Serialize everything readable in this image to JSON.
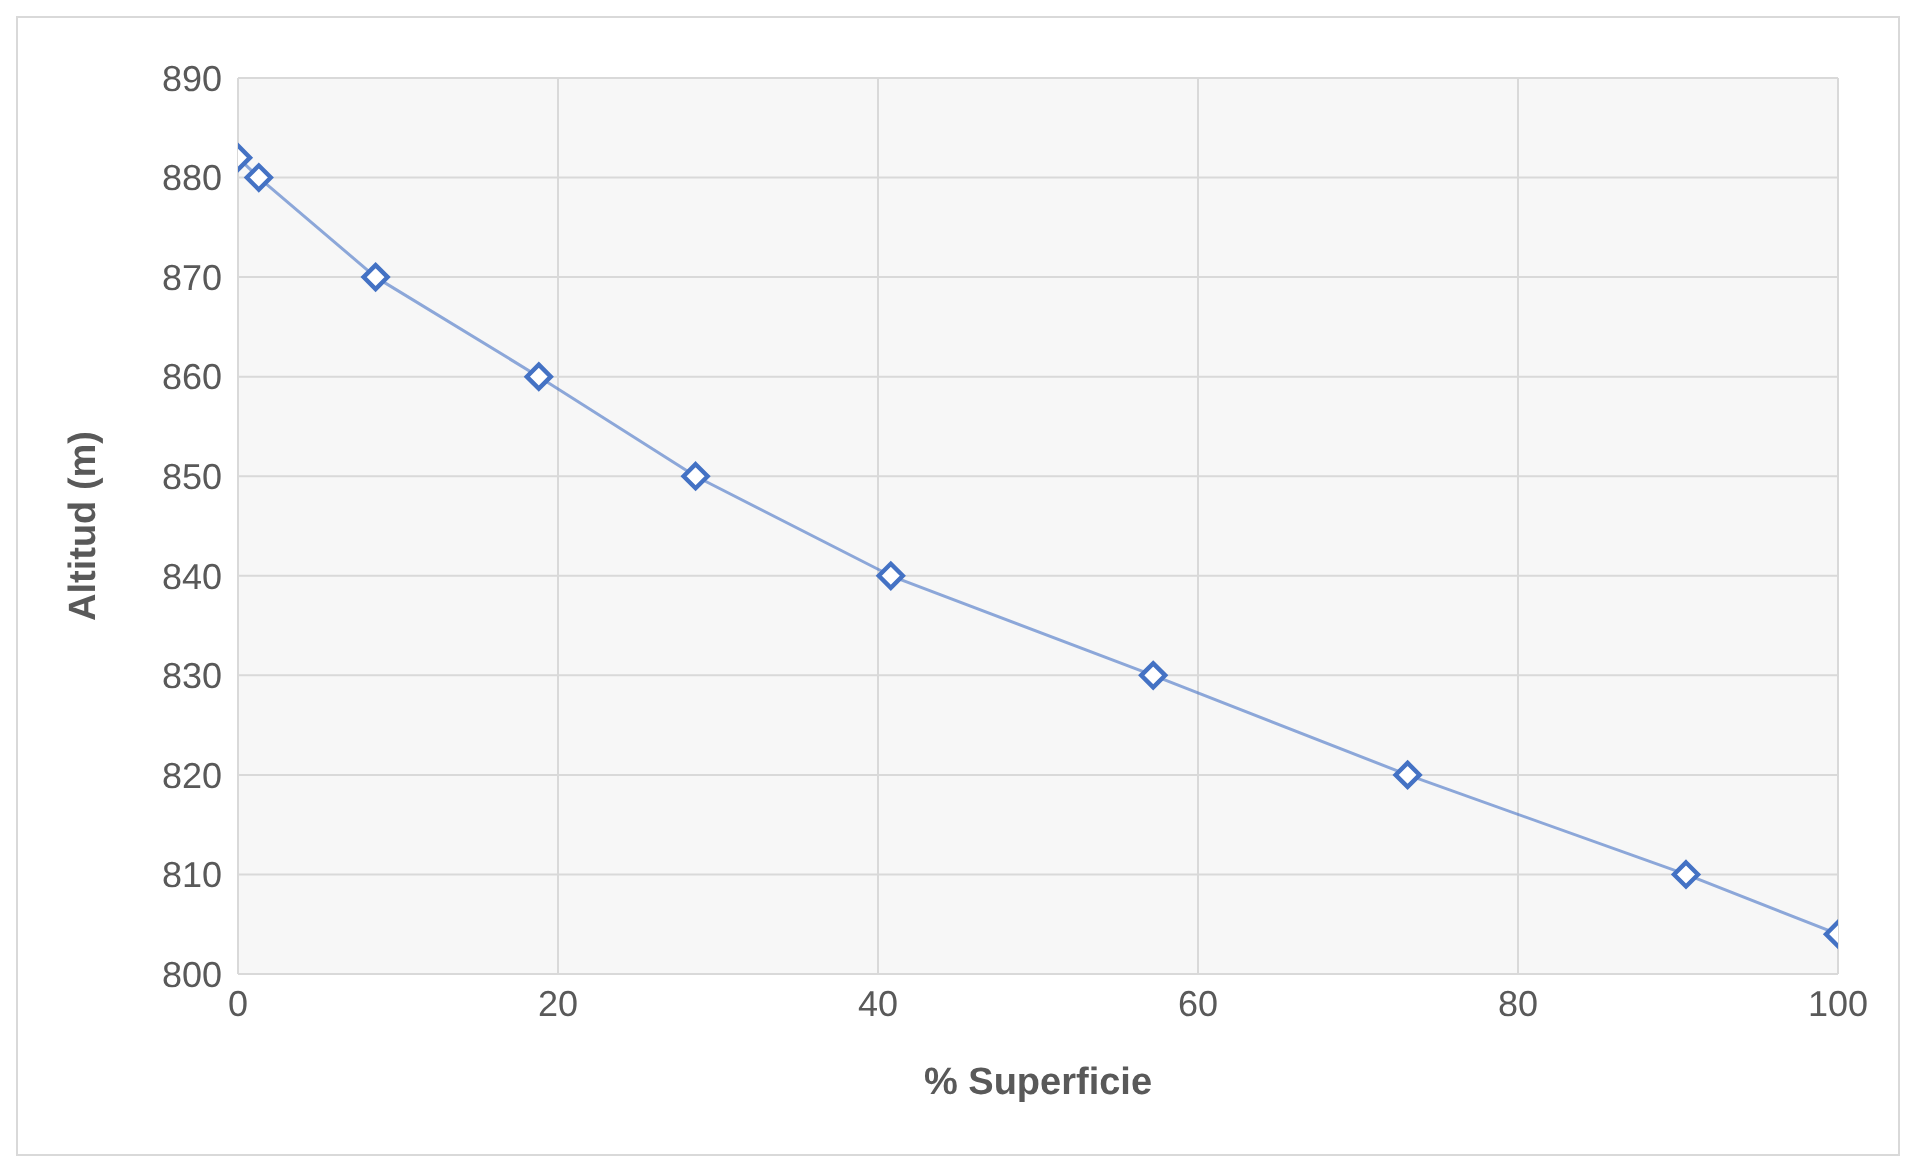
{
  "chart_data": {
    "type": "line",
    "xlabel": "% Superficie",
    "ylabel": "Altitud (m)",
    "x": [
      0,
      1.3,
      8.6,
      18.8,
      28.6,
      40.8,
      57.2,
      73.1,
      90.5,
      100
    ],
    "series": [
      {
        "color": "#4472c4",
        "values": [
          882,
          880,
          870,
          860,
          850,
          840,
          830,
          820,
          810,
          804
        ]
      }
    ],
    "xlim": [
      0,
      100
    ],
    "xticks": [
      0,
      20,
      40,
      60,
      80,
      100
    ],
    "ylim": [
      800,
      890
    ],
    "yticks": [
      800,
      810,
      820,
      830,
      840,
      850,
      860,
      870,
      880,
      890
    ],
    "grid": true,
    "marker": "diamond",
    "line_style": "solid",
    "legend": false
  }
}
